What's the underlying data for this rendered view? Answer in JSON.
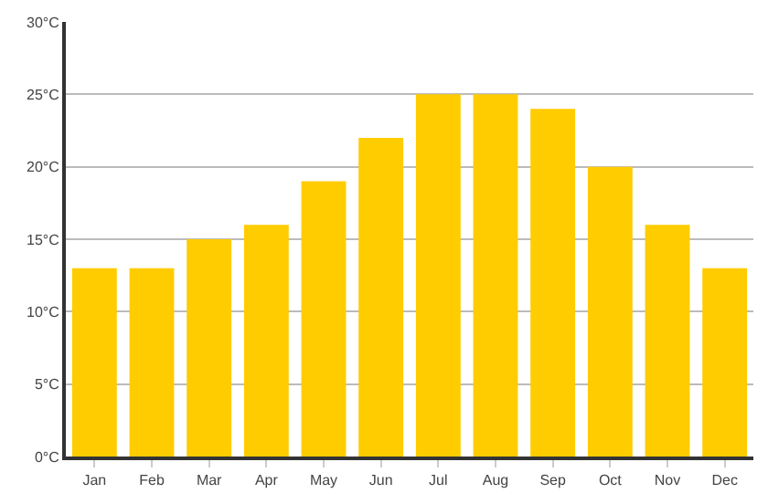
{
  "chart_data": {
    "type": "bar",
    "categories": [
      "Jan",
      "Feb",
      "Mar",
      "Apr",
      "May",
      "Jun",
      "Jul",
      "Aug",
      "Sep",
      "Oct",
      "Nov",
      "Dec"
    ],
    "values": [
      13,
      13,
      15,
      16,
      19,
      22,
      25,
      25,
      24,
      20,
      16,
      13
    ],
    "color": "#ffcc00",
    "ylim": [
      0,
      30
    ],
    "yticks": [
      {
        "value": 0,
        "label": "0°C"
      },
      {
        "value": 5,
        "label": "5°C"
      },
      {
        "value": 10,
        "label": "10°C"
      },
      {
        "value": 15,
        "label": "15°C"
      },
      {
        "value": 20,
        "label": "20°C"
      },
      {
        "value": 25,
        "label": "25°C"
      },
      {
        "value": 30,
        "label": "30°C"
      }
    ],
    "grid": "y",
    "legend": false
  }
}
